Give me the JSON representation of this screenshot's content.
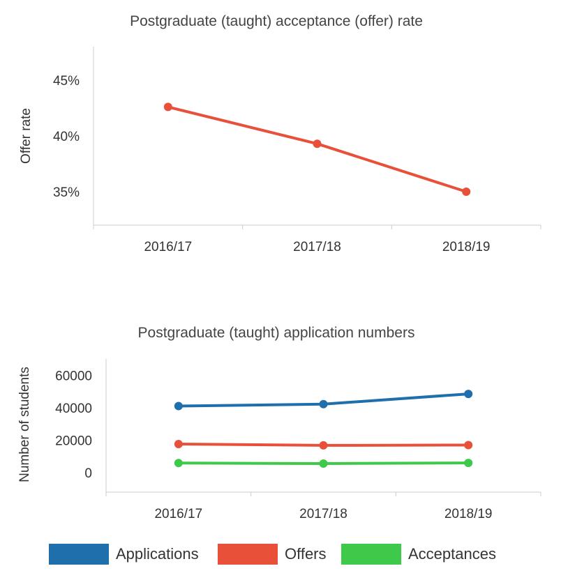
{
  "chart_data": [
    {
      "type": "line",
      "title": "Postgraduate (taught) acceptance (offer) rate",
      "xlabel": "",
      "ylabel": "Offer rate",
      "categories": [
        "2016/17",
        "2017/18",
        "2018/19"
      ],
      "yticks": [
        "35%",
        "40%",
        "45%"
      ],
      "ylim": [
        32,
        48
      ],
      "grid": false,
      "series": [
        {
          "values": [
            42.6,
            39.3,
            35.0
          ],
          "color": "#e8503a"
        }
      ]
    },
    {
      "type": "line",
      "title": "Postgraduate (taught) application numbers",
      "xlabel": "",
      "ylabel": "Number of students",
      "categories": [
        "2016/17",
        "2017/18",
        "2018/19"
      ],
      "yticks": [
        "0",
        "20000",
        "40000",
        "60000"
      ],
      "ylim": [
        -12000,
        70000
      ],
      "grid": false,
      "legend_position": "bottom",
      "series": [
        {
          "name": "Applications",
          "values": [
            41000,
            42200,
            48500
          ],
          "color": "#1f6fad"
        },
        {
          "name": "Offers",
          "values": [
            17600,
            16800,
            17000
          ],
          "color": "#e8503a"
        },
        {
          "name": "Acceptances",
          "values": [
            5900,
            5600,
            6000
          ],
          "color": "#3ec94b"
        }
      ]
    }
  ]
}
